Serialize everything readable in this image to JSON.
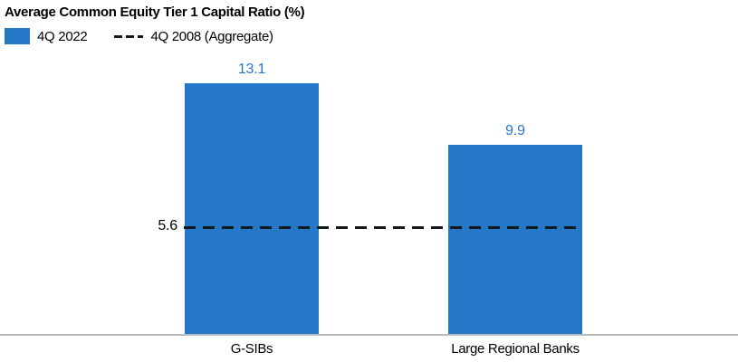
{
  "chart_data": {
    "type": "bar",
    "title": "Average Common Equity Tier 1 Capital Ratio (%)",
    "categories": [
      "G-SIBs",
      "Large Regional Banks"
    ],
    "series": [
      {
        "name": "4Q 2022",
        "values": [
          13.1,
          9.9
        ],
        "color": "#2577c8"
      }
    ],
    "reference_line": {
      "name": "4Q 2008 (Aggregate)",
      "value": 5.6,
      "style": "dashed",
      "color": "#14191f"
    },
    "value_labels": true,
    "grid": false,
    "ylim": [
      0,
      14.5
    ],
    "legend_position": "top-left",
    "colors": {
      "bar": "#2577c8",
      "value_label": "#2577c8",
      "reference_line": "#14191f",
      "axis_line": "#b9b9b9",
      "text": "#000000"
    }
  },
  "legend": {
    "items": [
      {
        "label": "4Q 2022",
        "swatch": "blue-bar-swatch"
      },
      {
        "label": "4Q 2008 (Aggregate)",
        "swatch": "dashed-line-swatch"
      }
    ]
  }
}
